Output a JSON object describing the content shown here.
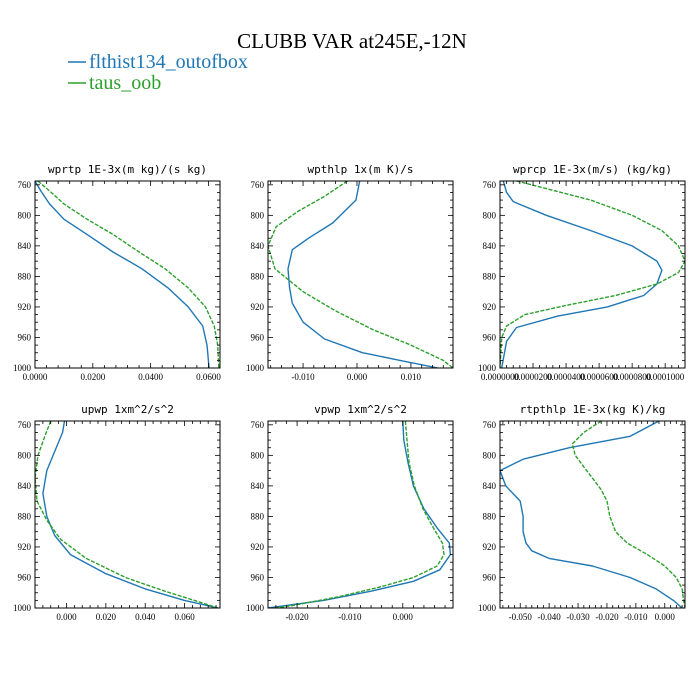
{
  "title": "CLUBB VAR at245E,-12N",
  "legend": [
    {
      "label": "flthist134_outofbox",
      "color": "#1f77b4",
      "dash": ""
    },
    {
      "label": "taus_oob",
      "color": "#2ca02c",
      "dash": "4 1.5"
    }
  ],
  "chart_data": [
    {
      "type": "line",
      "title": "wprtp  1E-3x(m kg)/(s kg)",
      "xlim": [
        0.0,
        0.064
      ],
      "ylim": [
        1000,
        755
      ],
      "xticks": [
        "0.0000",
        "0.0200",
        "0.0400",
        "0.0600"
      ],
      "xtick_values": [
        0.0,
        0.02,
        0.04,
        0.06
      ],
      "yticks": [
        760,
        800,
        840,
        880,
        920,
        960,
        1000
      ],
      "series": [
        {
          "name": "flthist134_outofbox",
          "points": [
            [
              0.0,
              755
            ],
            [
              0.002,
              768
            ],
            [
              0.005,
              785
            ],
            [
              0.01,
              805
            ],
            [
              0.018,
              825
            ],
            [
              0.027,
              848
            ],
            [
              0.037,
              870
            ],
            [
              0.046,
              895
            ],
            [
              0.053,
              920
            ],
            [
              0.058,
              945
            ],
            [
              0.0595,
              970
            ],
            [
              0.06,
              990
            ],
            [
              0.0602,
              1000
            ]
          ]
        },
        {
          "name": "taus_oob",
          "points": [
            [
              0.001,
              755
            ],
            [
              0.005,
              768
            ],
            [
              0.01,
              785
            ],
            [
              0.018,
              805
            ],
            [
              0.027,
              825
            ],
            [
              0.036,
              848
            ],
            [
              0.045,
              870
            ],
            [
              0.053,
              895
            ],
            [
              0.059,
              920
            ],
            [
              0.062,
              945
            ],
            [
              0.0632,
              970
            ],
            [
              0.0636,
              1000
            ]
          ]
        }
      ]
    },
    {
      "type": "line",
      "title": "wpthlp  1x(m K)/s",
      "xlim": [
        -0.0165,
        0.0178
      ],
      "ylim": [
        1000,
        755
      ],
      "xticks": [
        "-0.010",
        "0.000",
        "0.010"
      ],
      "xtick_values": [
        -0.01,
        0.0,
        0.01
      ],
      "yticks": [
        760,
        800,
        840,
        880,
        920,
        960,
        1000
      ],
      "series": [
        {
          "name": "flthist134_outofbox",
          "points": [
            [
              0.0005,
              755
            ],
            [
              -0.0002,
              780
            ],
            [
              -0.0045,
              810
            ],
            [
              -0.009,
              830
            ],
            [
              -0.012,
              845
            ],
            [
              -0.0128,
              870
            ],
            [
              -0.0125,
              895
            ],
            [
              -0.012,
              915
            ],
            [
              -0.01,
              940
            ],
            [
              -0.006,
              962
            ],
            [
              0.001,
              980
            ],
            [
              0.008,
              990
            ],
            [
              0.015,
              1000
            ]
          ]
        },
        {
          "name": "taus_oob",
          "points": [
            [
              -0.0018,
              755
            ],
            [
              -0.006,
              775
            ],
            [
              -0.011,
              795
            ],
            [
              -0.015,
              815
            ],
            [
              -0.0165,
              840
            ],
            [
              -0.0152,
              870
            ],
            [
              -0.01,
              900
            ],
            [
              -0.004,
              925
            ],
            [
              0.003,
              950
            ],
            [
              0.01,
              970
            ],
            [
              0.016,
              990
            ],
            [
              0.0178,
              1000
            ]
          ]
        }
      ]
    },
    {
      "type": "line",
      "title": "wprcp  1E-3x(m/s) (kg/kg)",
      "xlim": [
        0.0,
        0.000112
      ],
      "ylim": [
        1000,
        755
      ],
      "xticks": [
        "0.0000000",
        "0.0000200",
        "0.0000400",
        "0.0000600",
        "0.0000800",
        "0.0001000"
      ],
      "xtick_values": [
        0.0,
        2e-05,
        4e-05,
        6e-05,
        8e-05,
        0.0001
      ],
      "yticks": [
        760,
        800,
        840,
        880,
        920,
        960,
        1000
      ],
      "series": [
        {
          "name": "flthist134_outofbox",
          "points": [
            [
              2e-06,
              755
            ],
            [
              4e-06,
              770
            ],
            [
              8e-06,
              782
            ],
            [
              2.8e-05,
              800
            ],
            [
              5.5e-05,
              820
            ],
            [
              8e-05,
              840
            ],
            [
              9.5e-05,
              860
            ],
            [
              9.8e-05,
              872
            ],
            [
              9.5e-05,
              890
            ],
            [
              8.7e-05,
              905
            ],
            [
              6.5e-05,
              920
            ],
            [
              3.5e-05,
              932
            ],
            [
              1e-05,
              947
            ],
            [
              4e-06,
              965
            ],
            [
              1e-06,
              1000
            ]
          ]
        },
        {
          "name": "taus_oob",
          "points": [
            [
              1e-05,
              755
            ],
            [
              2.8e-05,
              765
            ],
            [
              5.5e-05,
              780
            ],
            [
              8e-05,
              800
            ],
            [
              9.8e-05,
              820
            ],
            [
              0.000108,
              840
            ],
            [
              0.000112,
              860
            ],
            [
              0.000108,
              875
            ],
            [
              9.5e-05,
              890
            ],
            [
              7e-05,
              905
            ],
            [
              4e-05,
              918
            ],
            [
              1.5e-05,
              930
            ],
            [
              4e-06,
              945
            ],
            [
              1e-06,
              960
            ],
            [
              0.0,
              1000
            ]
          ]
        }
      ]
    },
    {
      "type": "line",
      "title": "upwp  1xm^2/s^2",
      "xlim": [
        -0.016,
        0.078
      ],
      "ylim": [
        1000,
        755
      ],
      "xticks": [
        "0.000",
        "0.020",
        "0.040",
        "0.060"
      ],
      "xtick_values": [
        0.0,
        0.02,
        0.04,
        0.06
      ],
      "yticks": [
        760,
        800,
        840,
        880,
        920,
        960,
        1000
      ],
      "series": [
        {
          "name": "flthist134_outofbox",
          "points": [
            [
              -0.001,
              755
            ],
            [
              -0.002,
              770
            ],
            [
              -0.006,
              795
            ],
            [
              -0.01,
              820
            ],
            [
              -0.012,
              850
            ],
            [
              -0.01,
              880
            ],
            [
              -0.006,
              905
            ],
            [
              0.002,
              930
            ],
            [
              0.02,
              955
            ],
            [
              0.04,
              975
            ],
            [
              0.06,
              990
            ],
            [
              0.077,
              1000
            ]
          ]
        },
        {
          "name": "taus_oob",
          "points": [
            [
              -0.008,
              755
            ],
            [
              -0.011,
              775
            ],
            [
              -0.0145,
              800
            ],
            [
              -0.016,
              830
            ],
            [
              -0.015,
              860
            ],
            [
              -0.01,
              885
            ],
            [
              -0.003,
              910
            ],
            [
              0.01,
              935
            ],
            [
              0.03,
              960
            ],
            [
              0.05,
              978
            ],
            [
              0.065,
              990
            ],
            [
              0.077,
              1000
            ]
          ]
        }
      ]
    },
    {
      "type": "line",
      "title": "vpwp  1xm^2/s^2",
      "xlim": [
        -0.0255,
        0.0095
      ],
      "ylim": [
        1000,
        755
      ],
      "xticks": [
        "-0.020",
        "-0.010",
        "0.000"
      ],
      "xtick_values": [
        -0.02,
        -0.01,
        0.0
      ],
      "yticks": [
        760,
        800,
        840,
        880,
        920,
        960,
        1000
      ],
      "series": [
        {
          "name": "flthist134_outofbox",
          "points": [
            [
              0.0,
              755
            ],
            [
              0.0002,
              780
            ],
            [
              0.001,
              810
            ],
            [
              0.002,
              840
            ],
            [
              0.004,
              870
            ],
            [
              0.0065,
              895
            ],
            [
              0.0088,
              915
            ],
            [
              0.009,
              930
            ],
            [
              0.007,
              950
            ],
            [
              0.002,
              965
            ],
            [
              -0.006,
              978
            ],
            [
              -0.015,
              990
            ],
            [
              -0.0255,
              1000
            ]
          ]
        },
        {
          "name": "taus_oob",
          "points": [
            [
              0.0005,
              755
            ],
            [
              0.0008,
              780
            ],
            [
              0.0012,
              810
            ],
            [
              0.0022,
              840
            ],
            [
              0.0038,
              870
            ],
            [
              0.0058,
              895
            ],
            [
              0.0075,
              915
            ],
            [
              0.0078,
              930
            ],
            [
              0.0065,
              945
            ],
            [
              0.002,
              960
            ],
            [
              -0.004,
              972
            ],
            [
              -0.012,
              985
            ],
            [
              -0.021,
              997
            ],
            [
              -0.0245,
              1000
            ]
          ]
        }
      ]
    },
    {
      "type": "line",
      "title": "rtpthlp  1E-3x(kg K)/kg",
      "xlim": [
        -0.057,
        0.007
      ],
      "ylim": [
        1000,
        755
      ],
      "xticks": [
        "-0.050",
        "-0.040",
        "-0.030",
        "-0.020",
        "-0.010",
        "0.000"
      ],
      "xtick_values": [
        -0.05,
        -0.04,
        -0.03,
        -0.02,
        -0.01,
        0.0
      ],
      "yticks": [
        760,
        800,
        840,
        880,
        920,
        960,
        1000
      ],
      "series": [
        {
          "name": "flthist134_outofbox",
          "points": [
            [
              -0.002,
              755
            ],
            [
              -0.012,
              775
            ],
            [
              -0.033,
              790
            ],
            [
              -0.049,
              805
            ],
            [
              -0.057,
              820
            ],
            [
              -0.055,
              840
            ],
            [
              -0.05,
              860
            ],
            [
              -0.049,
              880
            ],
            [
              -0.049,
              900
            ],
            [
              -0.048,
              915
            ],
            [
              -0.046,
              925
            ],
            [
              -0.04,
              935
            ],
            [
              -0.025,
              945
            ],
            [
              -0.012,
              960
            ],
            [
              -0.003,
              975
            ],
            [
              0.003,
              990
            ],
            [
              0.006,
              1000
            ]
          ]
        },
        {
          "name": "taus_oob",
          "points": [
            [
              -0.022,
              755
            ],
            [
              -0.028,
              770
            ],
            [
              -0.032,
              785
            ],
            [
              -0.031,
              800
            ],
            [
              -0.028,
              815
            ],
            [
              -0.025,
              830
            ],
            [
              -0.022,
              845
            ],
            [
              -0.02,
              860
            ],
            [
              -0.019,
              880
            ],
            [
              -0.017,
              900
            ],
            [
              -0.013,
              915
            ],
            [
              -0.006,
              930
            ],
            [
              0.0,
              945
            ],
            [
              0.004,
              960
            ],
            [
              0.006,
              975
            ],
            [
              0.0065,
              990
            ],
            [
              0.007,
              1000
            ]
          ]
        }
      ]
    }
  ]
}
